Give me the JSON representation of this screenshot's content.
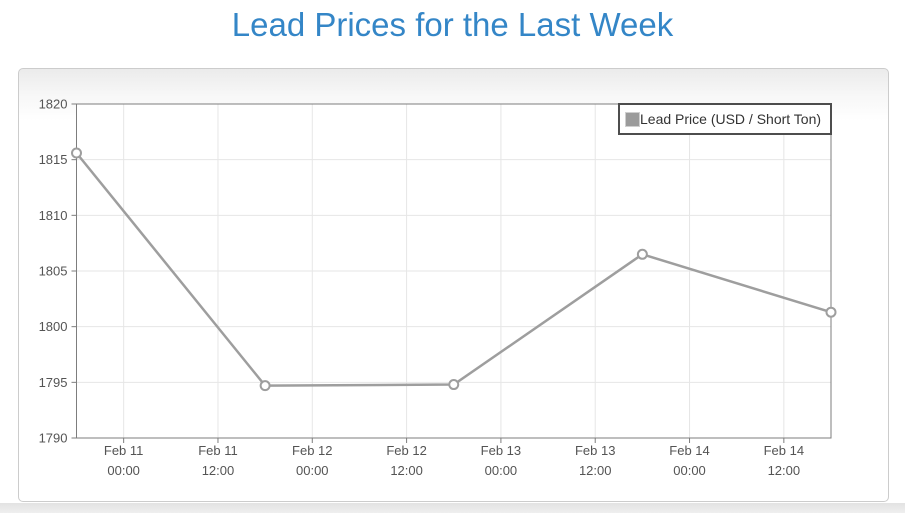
{
  "chart_data": {
    "type": "line",
    "title": "Lead Prices for the Last Week",
    "legend_position": "top-right",
    "grid": true,
    "x_axis": {
      "range_hours": [
        0,
        96
      ],
      "ticks": [
        {
          "hours": 6,
          "line1": "Feb 11",
          "line2": "00:00"
        },
        {
          "hours": 18,
          "line1": "Feb 11",
          "line2": "12:00"
        },
        {
          "hours": 30,
          "line1": "Feb 12",
          "line2": "00:00"
        },
        {
          "hours": 42,
          "line1": "Feb 12",
          "line2": "12:00"
        },
        {
          "hours": 54,
          "line1": "Feb 13",
          "line2": "00:00"
        },
        {
          "hours": 66,
          "line1": "Feb 13",
          "line2": "12:00"
        },
        {
          "hours": 78,
          "line1": "Feb 14",
          "line2": "00:00"
        },
        {
          "hours": 90,
          "line1": "Feb 14",
          "line2": "12:00"
        }
      ]
    },
    "y_axis": {
      "min": 1790,
      "max": 1820,
      "tick_interval": 5,
      "ticks": [
        1790,
        1795,
        1800,
        1805,
        1810,
        1815,
        1820
      ]
    },
    "series": [
      {
        "name": "Lead Price (USD / Short Ton)",
        "x_labels": [
          "Feb 10 18:00",
          "Feb 11 18:00",
          "Feb 12 18:00",
          "Feb 13 18:00",
          "Feb 14 18:00"
        ],
        "x_hours": [
          0,
          24,
          48,
          72,
          96
        ],
        "values": [
          1815.6,
          1794.7,
          1794.8,
          1806.5,
          1801.3
        ]
      }
    ],
    "colors": {
      "title": "#3486c7",
      "line": "#9e9e9e",
      "marker_fill": "#ffffff",
      "marker_stroke": "#9e9e9e",
      "grid": "#e6e6e6",
      "plot_border": "#7d7d7d",
      "axis_text": "#545454",
      "plot_background": "#ffffff",
      "legend_border": "#4d4d4d",
      "legend_swatch": "#9b9b9b"
    }
  }
}
